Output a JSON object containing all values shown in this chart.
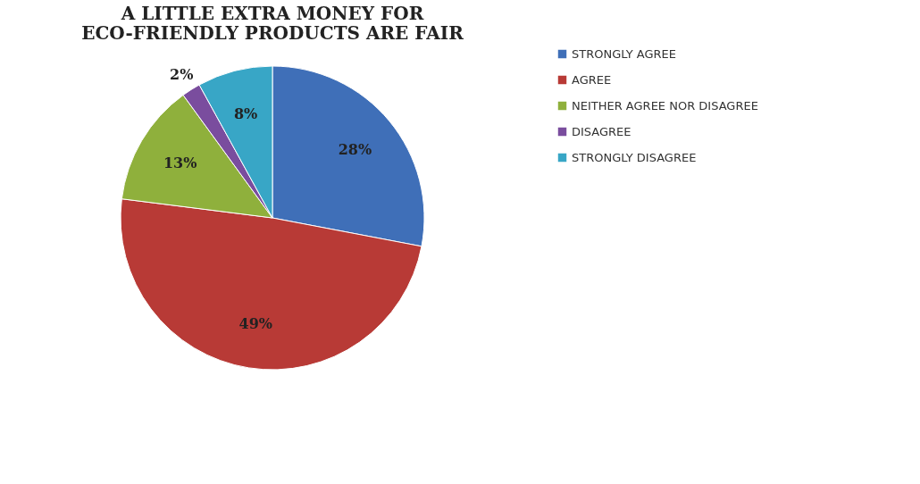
{
  "chart_data": {
    "type": "pie",
    "title": "A LITTLE EXTRA MONEY FOR ECO-FRIENDLY PRODUCTS ARE FAIR",
    "categories": [
      "STRONGLY AGREE",
      "AGREE",
      "NEITHER AGREE NOR DISAGREE",
      "DISAGREE",
      "STRONGLY DISAGREE"
    ],
    "values": [
      28,
      49,
      13,
      2,
      8
    ],
    "colors": [
      "#3f6fb8",
      "#b83a36",
      "#8fb03c",
      "#7a4d9e",
      "#38a6c6"
    ],
    "value_labels": [
      "28%",
      "49%",
      "13%",
      "2%",
      "8%"
    ],
    "legend": "right"
  }
}
